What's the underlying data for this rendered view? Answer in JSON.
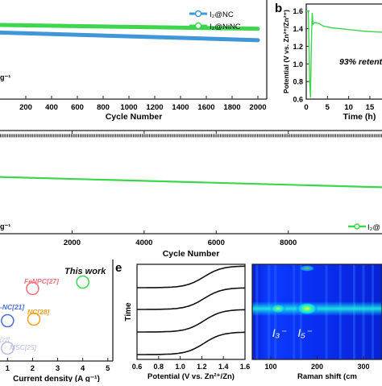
{
  "panel_letters": {
    "b": "b",
    "e": "e"
  },
  "chart_data": [
    {
      "panel": "a",
      "type": "line",
      "xlabel": "Cycle Number",
      "ylabel": "",
      "ticks_x": [
        "200",
        "400",
        "600",
        "800",
        "1000",
        "1200",
        "1400",
        "1600",
        "1800",
        "2000"
      ],
      "xlim": [
        0,
        2000
      ],
      "partial_label": "g⁻¹",
      "legend": [
        "I₂@NC",
        "I₂@NiNC"
      ],
      "legend_position": "top-right",
      "series": [
        {
          "name": "I₂@NC",
          "color": "#3f97d9",
          "x": [
            0,
            2000
          ],
          "y": [
            0.7,
            0.62
          ]
        },
        {
          "name": "I₂@NiNC",
          "color": "#3dd64f",
          "x": [
            0,
            2000
          ],
          "y": [
            0.78,
            0.74
          ]
        }
      ]
    },
    {
      "panel": "b",
      "type": "line",
      "xlabel": "Time (h)",
      "ylabel": "Potential (V vs. Zn²⁺/Zn²⁺)",
      "ticks_y": [
        "0.6",
        "0.8",
        "1.0",
        "1.2",
        "1.4",
        "1.6"
      ],
      "ticks_x": [
        "0",
        "5",
        "10",
        "15"
      ],
      "ylim": [
        0.6,
        1.68
      ],
      "xlim": [
        0,
        19
      ],
      "annotation": "93% retent",
      "series": [
        {
          "name": "",
          "color": "#3dd64f",
          "x": [
            0,
            0.5,
            0.8,
            1.0,
            1.2,
            1.4,
            1.6,
            2,
            3,
            4,
            6,
            8,
            10,
            12,
            14,
            16,
            18,
            19
          ],
          "y": [
            1.6,
            1.6,
            0.8,
            0.62,
            1.2,
            1.58,
            1.45,
            1.47,
            1.46,
            1.43,
            1.41,
            1.4,
            1.39,
            1.38,
            1.37,
            1.365,
            1.36,
            1.355
          ]
        }
      ]
    },
    {
      "panel": "c",
      "type": "line",
      "xlabel": "Cycle Number",
      "ticks_x": [
        "2000",
        "4000",
        "6000",
        "8000"
      ],
      "xlim": [
        0,
        10600
      ],
      "partial_label": "g⁻¹",
      "legend": [
        "I₂@"
      ],
      "series": [
        {
          "name": "I₂@",
          "color": "#3dd64f",
          "x": [
            0,
            10600
          ],
          "y": [
            0.55,
            0.45
          ]
        },
        {
          "name": "",
          "color": "#333333",
          "x": [
            0,
            10600
          ],
          "y": [
            0.95,
            0.95
          ]
        }
      ]
    },
    {
      "panel": "d",
      "type": "scatter",
      "xlabel": "Current density (A g⁻¹)",
      "ticks_x": [
        "1",
        "2",
        "3",
        "4",
        "5"
      ],
      "xlim": [
        0.7,
        5.2
      ],
      "annotation": "This work",
      "points": [
        {
          "label": "This work",
          "x": 4.0,
          "color": "#3dd64f"
        },
        {
          "label": "FeNPC[27]",
          "x": 2.0,
          "color": "#f0727a"
        },
        {
          "label": "NC[28]",
          "x": 2.05,
          "color": "#f0a020"
        },
        {
          "label": "-NC[21]",
          "x": 1.0,
          "color": "#4a6fd8"
        },
        {
          "label": "MSC[25]",
          "x": 1.0,
          "color": "#b8bde0"
        },
        {
          "label": "[22]",
          "x": 0.75,
          "color": "#b8bde0"
        }
      ]
    },
    {
      "panel": "e",
      "type": "line",
      "xlabel": "Potential (V vs. Zn²⁺/Zn)",
      "ylabel": "Time",
      "ticks_x": [
        "0.6",
        "0.8",
        "1.0",
        "1.2",
        "1.4",
        "1.6"
      ],
      "xlim": [
        0.6,
        1.6
      ]
    },
    {
      "panel": "e-raman",
      "type": "heatmap",
      "xlabel": "Raman shift (cm",
      "ticks_x": [
        "100",
        "200",
        "300"
      ],
      "xlim": [
        60,
        340
      ],
      "peak_labels": [
        {
          "text": "I₃⁻",
          "x": 110
        },
        {
          "text": "I₅⁻",
          "x": 165
        }
      ]
    }
  ]
}
